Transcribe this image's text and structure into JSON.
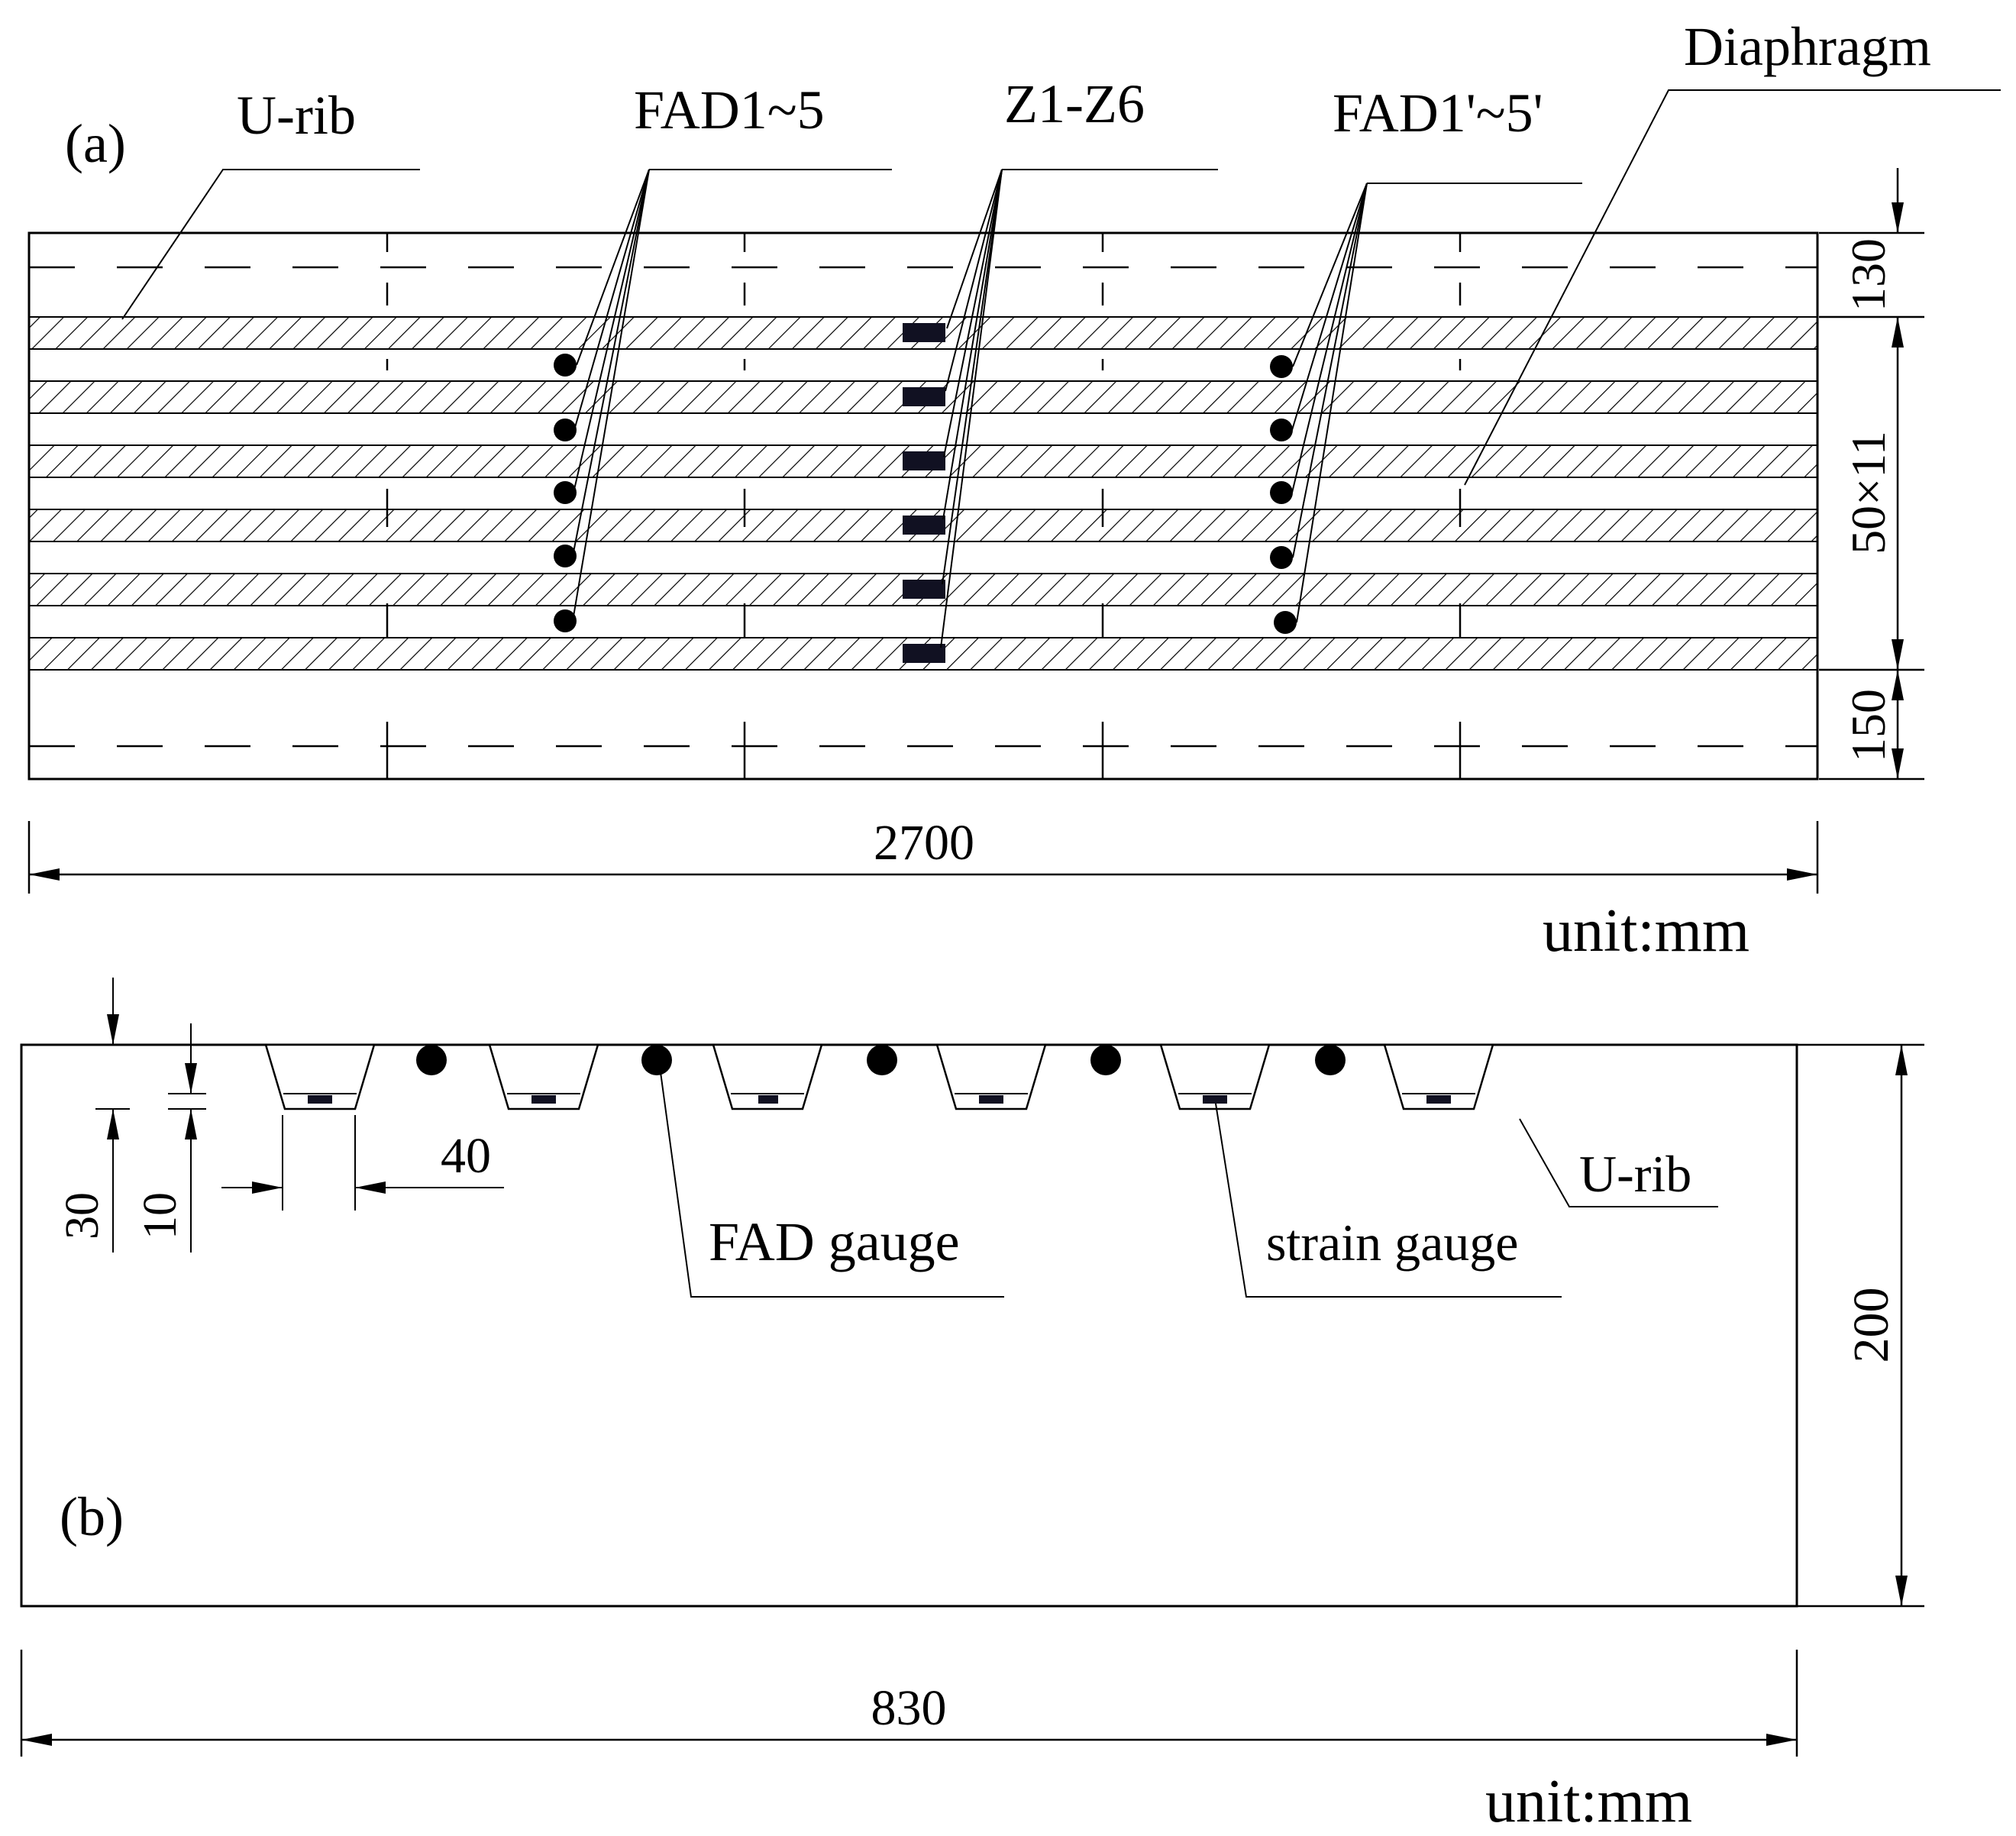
{
  "panel_a": {
    "label": "(a)",
    "u_rib_label": "U-rib",
    "fad_label": "FAD1~5",
    "z_label": "Z1-Z6",
    "fad_prime_label": "FAD1'~5'",
    "diaphragm_label": "Diaphragm",
    "dim_top": "130",
    "dim_middle": "50×11",
    "dim_bottom": "150",
    "dim_width": "2700",
    "unit": "unit:mm"
  },
  "panel_b": {
    "label": "(b)",
    "dim_30": "30",
    "dim_10": "10",
    "dim_40": "40",
    "fad_gauge_label": "FAD gauge",
    "strain_gauge_label": "strain gauge",
    "u_rib_label": "U-rib",
    "dim_height": "200",
    "dim_width": "830",
    "unit": "unit:mm"
  },
  "colors": {
    "line": "#000000",
    "gauge_fill": "#111122"
  }
}
